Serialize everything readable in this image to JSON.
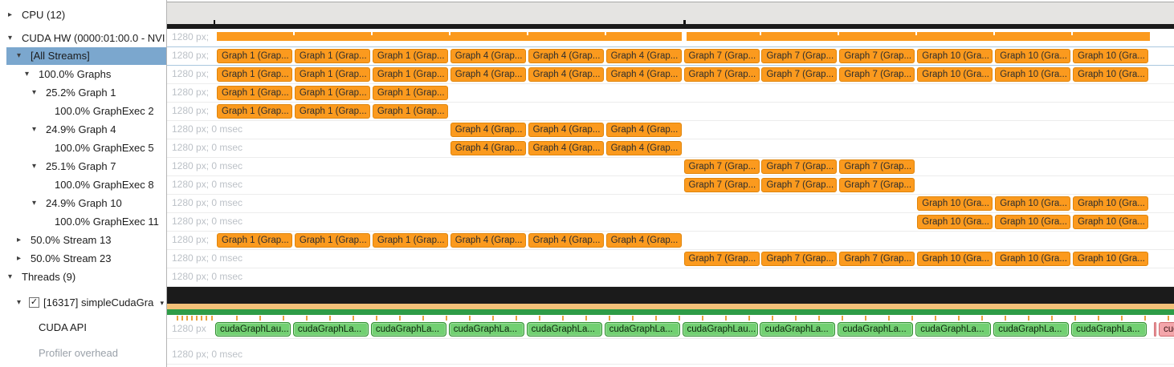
{
  "sidebar": {
    "items": [
      {
        "name": "cpu",
        "label": "CPU (12)",
        "level": 0,
        "arrow": "collapsed"
      },
      {
        "name": "cuda-hw",
        "label": "CUDA HW (0000:01:00.0 - NVI",
        "level": 0,
        "arrow": "expanded"
      },
      {
        "name": "all-streams",
        "label": "[All Streams]",
        "level": 1,
        "arrow": "expanded",
        "selected": true
      },
      {
        "name": "graphs",
        "label": "100.0% Graphs",
        "level": 2,
        "arrow": "expanded"
      },
      {
        "name": "graph-1",
        "label": "25.2% Graph 1",
        "level": 3,
        "arrow": "expanded"
      },
      {
        "name": "graphexec-2",
        "label": "100.0% GraphExec 2",
        "level": 4,
        "arrow": "none"
      },
      {
        "name": "graph-4",
        "label": "24.9% Graph 4",
        "level": 3,
        "arrow": "expanded"
      },
      {
        "name": "graphexec-5",
        "label": "100.0% GraphExec 5",
        "level": 4,
        "arrow": "none"
      },
      {
        "name": "graph-7",
        "label": "25.1% Graph 7",
        "level": 3,
        "arrow": "expanded"
      },
      {
        "name": "graphexec-8",
        "label": "100.0% GraphExec 8",
        "level": 4,
        "arrow": "none"
      },
      {
        "name": "graph-10",
        "label": "24.9% Graph 10",
        "level": 3,
        "arrow": "expanded"
      },
      {
        "name": "graphexec-11",
        "label": "100.0% GraphExec 11",
        "level": 4,
        "arrow": "none"
      },
      {
        "name": "stream-13",
        "label": "50.0% Stream 13",
        "level": 1,
        "arrow": "collapsed"
      },
      {
        "name": "stream-23",
        "label": "50.0% Stream 23",
        "level": 1,
        "arrow": "collapsed"
      },
      {
        "name": "threads",
        "label": "Threads (9)",
        "level": 0,
        "arrow": "expanded"
      },
      {
        "name": "thread-16317",
        "label": "[16317] simpleCudaGra",
        "level": 1,
        "arrow": "expanded",
        "checkbox": true,
        "checked": true,
        "combo": true
      },
      {
        "name": "cuda-api",
        "label": "CUDA API",
        "level": 2,
        "arrow": "none"
      },
      {
        "name": "profiler-overhead",
        "label": "Profiler overhead",
        "level": 2,
        "arrow": "none",
        "dim": true
      }
    ]
  },
  "timeline": {
    "block_labels": {
      "g1": "Graph 1 (Grap...",
      "g4": "Graph 4 (Grap...",
      "g7": "Graph 7 (Grap...",
      "g10": "Graph 10 (Gra..."
    },
    "slot_series": [
      "g1",
      "g1",
      "g1",
      "g4",
      "g4",
      "g4",
      "g7",
      "g7",
      "g7",
      "g10",
      "g10",
      "g10"
    ],
    "groups": {
      "all": [
        0,
        1,
        2,
        3,
        4,
        5,
        6,
        7,
        8,
        9,
        10,
        11
      ],
      "g1": [
        0,
        1,
        2
      ],
      "g4": [
        3,
        4,
        5
      ],
      "g7": [
        6,
        7,
        8
      ],
      "g10": [
        9,
        10,
        11
      ],
      "first_half": [
        0,
        1,
        2,
        3,
        4,
        5
      ],
      "second_half": [
        6,
        7,
        8,
        9,
        10,
        11
      ]
    },
    "rows": [
      {
        "id": "cuda-hw-summary",
        "type": "strip",
        "label": "1280 px;"
      },
      {
        "id": "all-streams",
        "type": "blocks",
        "label": "1280 px;",
        "group": "all",
        "selected": true
      },
      {
        "id": "graphs-100",
        "type": "blocks",
        "label": "1280 px;",
        "group": "all"
      },
      {
        "id": "graph-1",
        "type": "blocks",
        "label": "1280 px;",
        "group": "g1"
      },
      {
        "id": "graphexec-2",
        "type": "blocks",
        "label": "1280 px;",
        "group": "g1"
      },
      {
        "id": "graph-4",
        "type": "blocks",
        "label": "1280 px; 0 msec",
        "group": "g4"
      },
      {
        "id": "graphexec-5",
        "type": "blocks",
        "label": "1280 px; 0 msec",
        "group": "g4"
      },
      {
        "id": "graph-7",
        "type": "blocks",
        "label": "1280 px; 0 msec",
        "group": "g7"
      },
      {
        "id": "graphexec-8",
        "type": "blocks",
        "label": "1280 px; 0 msec",
        "group": "g7"
      },
      {
        "id": "graph-10",
        "type": "blocks",
        "label": "1280 px; 0 msec",
        "group": "g10"
      },
      {
        "id": "graphexec-11",
        "type": "blocks",
        "label": "1280 px; 0 msec",
        "group": "g10"
      },
      {
        "id": "stream-13",
        "type": "blocks",
        "label": "1280 px;",
        "group": "first_half"
      },
      {
        "id": "stream-23",
        "type": "blocks",
        "label": "1280 px; 0 msec",
        "group": "second_half"
      },
      {
        "id": "threads",
        "type": "empty",
        "label": "1280 px; 0 msec"
      },
      {
        "id": "thread-16317-state",
        "type": "thread-strips"
      },
      {
        "id": "cuda-api",
        "type": "api",
        "label": "1280 px"
      },
      {
        "id": "spacer",
        "type": "gap"
      },
      {
        "id": "profiler-overhead",
        "type": "empty",
        "label": "1280 px; 0 msec"
      }
    ],
    "api": {
      "calls": [
        "cudaGraphLau...",
        "cudaGraphLa...",
        "cudaGraphLa...",
        "cudaGraphLa...",
        "cudaGraphLa...",
        "cudaGraphLa...",
        "cudaGraphLau...",
        "cudaGraphLa...",
        "cudaGraphLa...",
        "cudaGraphLa...",
        "cudaGraphLa...",
        "cudaGraphLa..."
      ],
      "pink_label": "cuda"
    },
    "ruler": {
      "ticks": [
        58,
        643
      ]
    }
  },
  "colors": {
    "event_orange": "#fb9a1e",
    "event_orange_border": "#e0850b",
    "api_green": "#72d072",
    "api_green_border": "#2f8f2f",
    "api_pink": "#f4a6ab",
    "api_pink_border": "#cf6b70",
    "selection_blue": "#7ba7ce",
    "selected_row_separator": "#a9c7de",
    "thread_state_black": "#1b1b1b",
    "thread_state_tan": "#f3c179",
    "thread_state_green": "#2e9c47",
    "marker_orange": "#e8a33d"
  }
}
